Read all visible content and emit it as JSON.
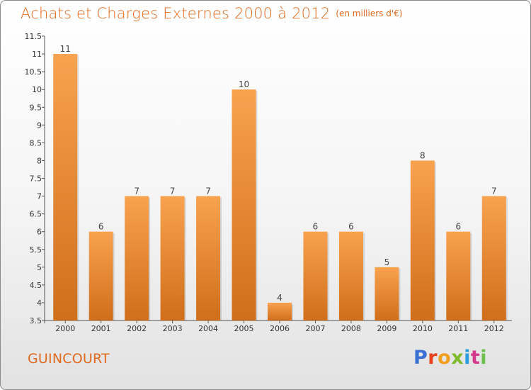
{
  "header": {
    "title": "Achats et Charges Externes 2000 à 2012",
    "unit": "(en milliers d'€)"
  },
  "footer": {
    "place": "GUINCOURT",
    "logo": "Proxiti",
    "logo_colors": [
      "#3b6fd4",
      "#e8421c",
      "#f0a01e",
      "#7dbb2a",
      "#2b9be0",
      "#d43a8a",
      "#6cc04a"
    ]
  },
  "chart_data": {
    "type": "bar",
    "title": "Achats et Charges Externes 2000 à 2012",
    "subtitle": "(en milliers d'€)",
    "categories": [
      "2000",
      "2001",
      "2002",
      "2003",
      "2004",
      "2005",
      "2006",
      "2007",
      "2008",
      "2009",
      "2010",
      "2011",
      "2012"
    ],
    "values": [
      11,
      6,
      7,
      7,
      7,
      10,
      4,
      6,
      6,
      5,
      8,
      6,
      7
    ],
    "data_labels": [
      "11",
      "6",
      "7",
      "7",
      "7",
      "10",
      "4",
      "6",
      "6",
      "5",
      "8",
      "6",
      "7"
    ],
    "ylim": [
      3.5,
      11.5
    ],
    "yticks": [
      "3.5",
      "4",
      "4.5",
      "5",
      "5.5",
      "6",
      "6.5",
      "7",
      "7.5",
      "8",
      "8.5",
      "9",
      "9.5",
      "10",
      "10.5",
      "11",
      "11.5"
    ],
    "bar_color_top": "#f9a24f",
    "bar_color_bottom": "#d06e1a",
    "grid": false
  }
}
